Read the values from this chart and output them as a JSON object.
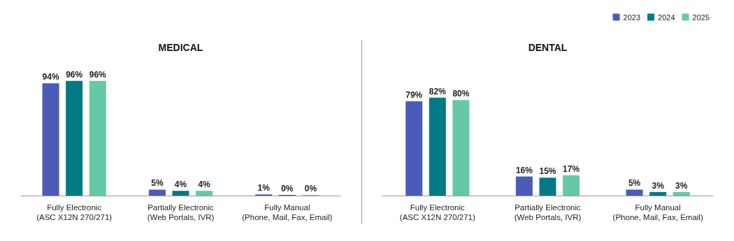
{
  "chart_data": [
    {
      "type": "bar",
      "title": "MEDICAL",
      "categories": [
        "Fully Electronic\n(ASC X12N 270/271)",
        "Partially Electronic\n(Web Portals, IVR)",
        "Fully Manual\n(Phone, Mail, Fax, Email)"
      ],
      "tick_labels": "x",
      "grid": false,
      "legend": false,
      "series": [
        {
          "color": "#4a5bb8",
          "values": [
            94,
            5,
            1
          ],
          "value_labels": [
            "94%",
            "5%",
            "1%"
          ]
        },
        {
          "color": "#007a87",
          "values": [
            96,
            4,
            0
          ],
          "value_labels": [
            "96%",
            "4%",
            "0%"
          ]
        },
        {
          "color": "#66c9a6",
          "values": [
            96,
            4,
            0
          ],
          "value_labels": [
            "96%",
            "4%",
            "0%"
          ]
        }
      ]
    },
    {
      "type": "bar",
      "title": "DENTAL",
      "categories": [
        "Fully Electronic\n(ASC X12N 270/271)",
        "Partially Electronic\n(Web Portals, IVR)",
        "Fully Manual\n(Phone, Mail, Fax, Email)"
      ],
      "tick_labels": "x",
      "grid": false,
      "legend": "top right",
      "series": [
        {
          "name": "2023",
          "color": "#4a5bb8",
          "values": [
            79,
            16,
            5
          ],
          "value_labels": [
            "79%",
            "16%",
            "5%"
          ]
        },
        {
          "name": "2024",
          "color": "#007a87",
          "values": [
            82,
            15,
            3
          ],
          "value_labels": [
            "82%",
            "15%",
            "3%"
          ]
        },
        {
          "name": "2025",
          "color": "#66c9a6",
          "values": [
            80,
            17,
            3
          ],
          "value_labels": [
            "80%",
            "17%",
            "3%"
          ]
        }
      ]
    }
  ]
}
